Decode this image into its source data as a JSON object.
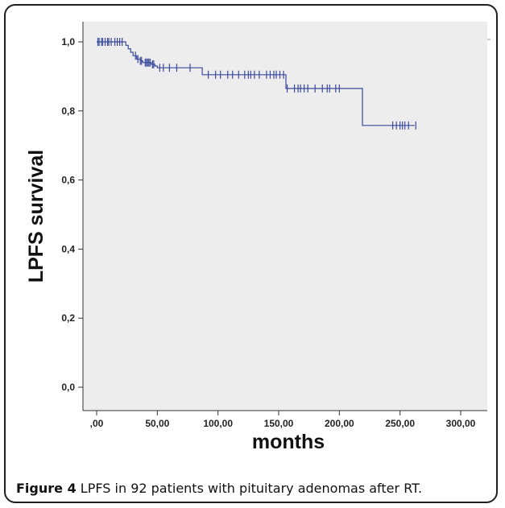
{
  "caption": {
    "label": "Figure 4",
    "text": "LPFS in 92 patients with pituitary adenomas after RT."
  },
  "colors": {
    "plot_background": "#ededed",
    "curve": "#3a4a9c",
    "axis": "#333333"
  },
  "chart_data": {
    "type": "line",
    "xlabel": "months",
    "ylabel": "LPFS survival",
    "xlim": [
      0,
      300
    ],
    "ylim": [
      0,
      1
    ],
    "x_ticks": [
      0,
      50,
      100,
      150,
      200,
      250,
      300
    ],
    "x_tick_labels": [
      ",00",
      "50,00",
      "100,00",
      "150,00",
      "200,00",
      "250,00",
      "300,00"
    ],
    "y_ticks": [
      0,
      0.2,
      0.4,
      0.6,
      0.8,
      1.0
    ],
    "y_tick_labels": [
      "0,0",
      "0,2",
      "0,4",
      "0,6",
      "0,8",
      "1,0"
    ],
    "grid": false,
    "series": [
      {
        "step_x": [
          0,
          20,
          24,
          26,
          28,
          30,
          33,
          36,
          38,
          45,
          48,
          50,
          87,
          156,
          219,
          262
        ],
        "step_y": [
          1.0,
          1.0,
          0.99,
          0.98,
          0.97,
          0.96,
          0.95,
          0.945,
          0.94,
          0.935,
          0.93,
          0.925,
          0.905,
          0.865,
          0.758,
          0.758
        ],
        "censored_x": [
          1,
          2,
          4,
          5,
          7,
          9,
          10,
          12,
          15,
          17,
          19,
          21,
          32,
          34,
          36,
          37,
          40,
          41,
          42,
          43,
          44,
          46,
          47,
          52,
          55,
          60,
          66,
          77,
          92,
          98,
          102,
          108,
          112,
          117,
          122,
          125,
          127,
          130,
          134,
          140,
          143,
          146,
          148,
          151,
          154,
          157,
          163,
          166,
          168,
          171,
          174,
          180,
          186,
          190,
          192,
          197,
          200,
          244,
          247,
          250,
          252,
          254,
          257,
          263
        ]
      }
    ]
  }
}
